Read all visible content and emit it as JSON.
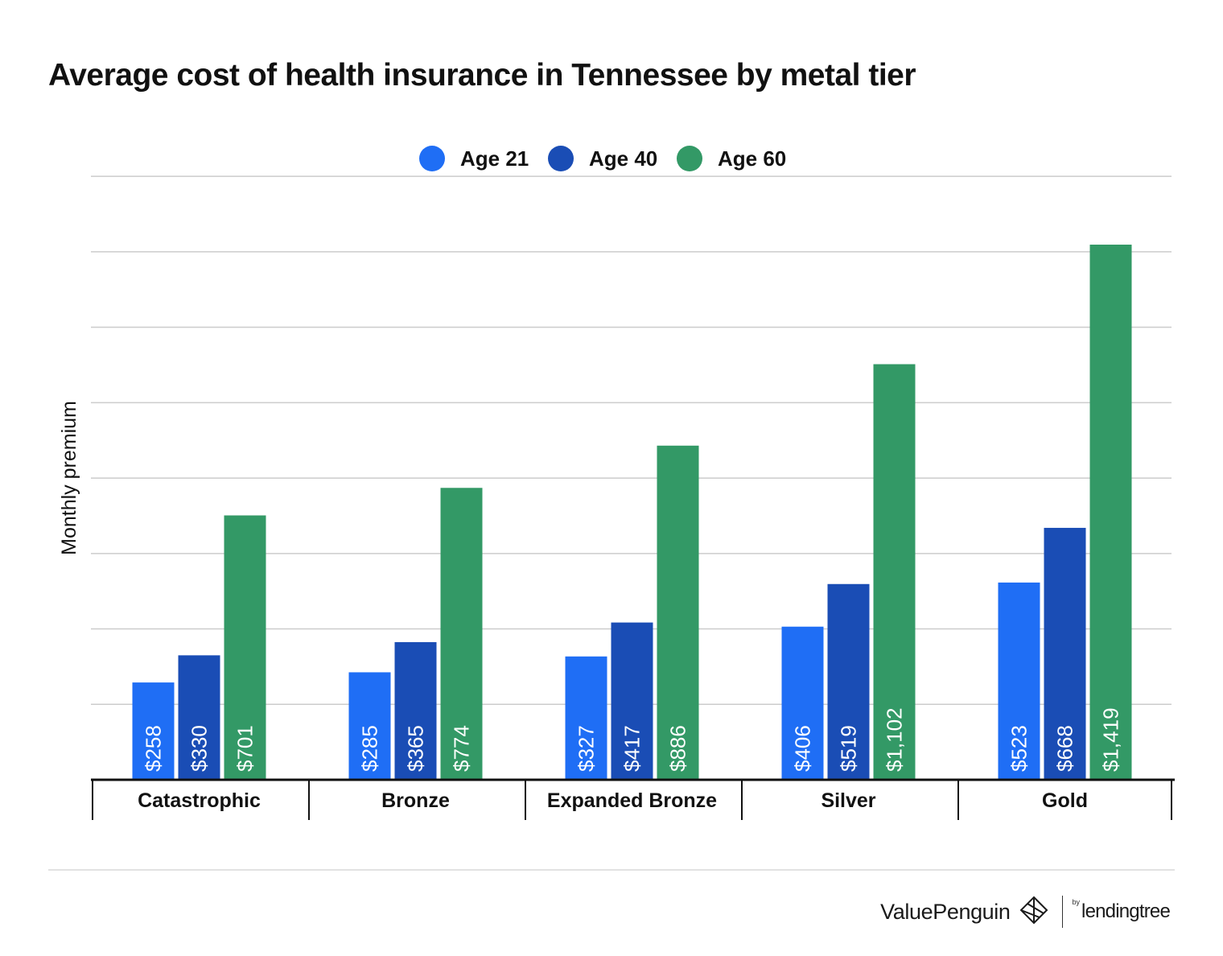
{
  "chart_data": {
    "type": "bar",
    "title": "Average cost of health insurance in Tennessee by metal tier",
    "ylabel": "Monthly premium",
    "xlabel": "",
    "ylim": [
      0,
      1600
    ],
    "grid": true,
    "legend": "top-center",
    "categories": [
      "Catastrophic",
      "Bronze",
      "Expanded Bronze",
      "Silver",
      "Gold"
    ],
    "series": [
      {
        "name": "Age 21",
        "color": "#1f6ef5",
        "values": [
          258,
          285,
          327,
          406,
          523
        ],
        "labels": [
          "$258",
          "$285",
          "$327",
          "$406",
          "$523"
        ]
      },
      {
        "name": "Age 40",
        "color": "#1a4db5",
        "values": [
          330,
          365,
          417,
          519,
          668
        ],
        "labels": [
          "$330",
          "$365",
          "$417",
          "$519",
          "$668"
        ]
      },
      {
        "name": "Age 60",
        "color": "#339966",
        "values": [
          701,
          774,
          886,
          1102,
          1419
        ],
        "labels": [
          "$701",
          "$774",
          "$886",
          "$1,102",
          "$1,419"
        ]
      }
    ]
  },
  "branding": {
    "valuepenguin": "ValuePenguin",
    "by": "by",
    "lendingtree": "lendingtree"
  }
}
